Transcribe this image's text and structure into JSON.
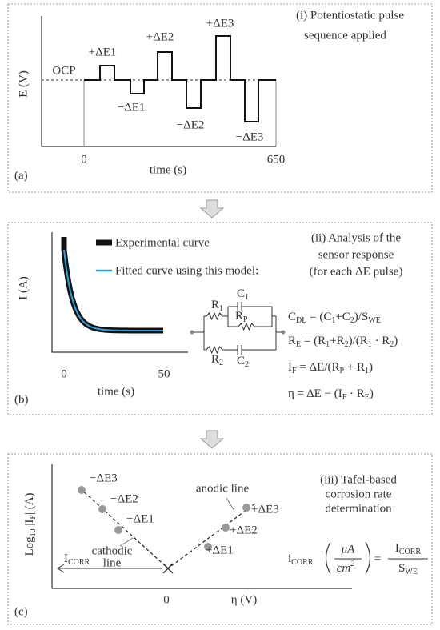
{
  "panel_a": {
    "label": "(a)",
    "caption": [
      "(i) Potentiostatic pulse",
      "sequence applied"
    ],
    "y_axis": "E (V)",
    "x_axis": "time (s)",
    "ocp": "OCP",
    "x_ticks": [
      "0",
      "650"
    ],
    "pulses": [
      "+ΔE1",
      "−ΔE1",
      "+ΔE2",
      "−ΔE2",
      "+ΔE3",
      "−ΔE3"
    ]
  },
  "panel_b": {
    "label": "(b)",
    "caption": [
      "(ii) Analysis of the",
      "sensor response",
      "(for each ΔE pulse)"
    ],
    "y_axis": "I (A)",
    "x_axis": "time (s)",
    "x_ticks": [
      "0",
      "50"
    ],
    "legend": [
      "Experimental curve",
      "Fitted curve using this model:"
    ],
    "circuit": {
      "r1": [
        "R",
        {
          "sub": "1"
        }
      ],
      "c1": [
        "C",
        {
          "sub": "1"
        }
      ],
      "rp": [
        "R",
        {
          "sub": "P"
        }
      ],
      "r2": [
        "R",
        {
          "sub": "2"
        }
      ],
      "c2": [
        "C",
        {
          "sub": "2"
        }
      ]
    },
    "equations": [
      [
        "C",
        {
          "sub": "DL"
        },
        " = (C",
        {
          "sub": "1"
        },
        "+C",
        {
          "sub": "2"
        },
        ")/S",
        {
          "sub": "WE"
        }
      ],
      [
        "R",
        {
          "sub": "E"
        },
        " = (R",
        {
          "sub": "1"
        },
        "+R",
        {
          "sub": "2"
        },
        ")/(R",
        {
          "sub": "1"
        },
        " · R",
        {
          "sub": "2"
        },
        ")"
      ],
      [
        "I",
        {
          "sub": "F"
        },
        " = ΔE/(R",
        {
          "sub": "P"
        },
        " + R",
        {
          "sub": "1"
        },
        ")"
      ],
      [
        "η = ΔE − (I",
        {
          "sub": "F"
        },
        " · R",
        {
          "sub": "E"
        },
        ")"
      ]
    ]
  },
  "panel_c": {
    "label": "(c)",
    "caption": [
      "(iii) Tafel-based",
      "corrosion rate",
      "determination"
    ],
    "y_axis": [
      "Log",
      {
        "sub": "10"
      },
      " |I",
      {
        "sub": "F"
      },
      "| (A)"
    ],
    "x_axis": "η (V)",
    "x_ticks": [
      "0"
    ],
    "cathodic_points": [
      "−ΔE3",
      "−ΔE2",
      "−ΔE1"
    ],
    "anodic_points": [
      "+ΔE1",
      "+ΔE2",
      "+ΔE3"
    ],
    "cathodic_line": [
      "cathodic",
      "line"
    ],
    "anodic_line": "anodic line",
    "icorr_arrow": [
      "I",
      {
        "sub": "CORR"
      }
    ],
    "icorr_equation": {
      "lhs": [
        "i",
        {
          "sub": "CORR"
        }
      ],
      "unit_num": "μA",
      "unit_den": [
        "cm",
        {
          "sup": "2"
        }
      ],
      "equals": "=",
      "rhs_num": [
        "I",
        {
          "sub": "CORR"
        }
      ],
      "rhs_den": [
        "S",
        {
          "sub": "WE"
        }
      ]
    }
  }
}
